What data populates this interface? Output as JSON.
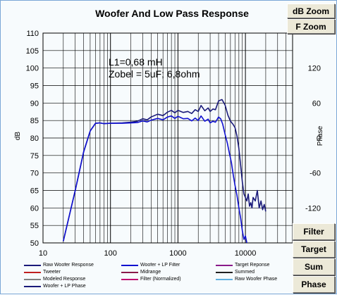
{
  "window": {
    "title": "Woofer  And Low Pass Response"
  },
  "buttons": {
    "db_zoom": "dB Zoom",
    "f_zoom": "F Zoom",
    "filter": "Filter",
    "target": "Target",
    "sum": "Sum",
    "phase": "Phase"
  },
  "annotations": {
    "line1": "L1=0,68 mH",
    "line2": "Zobel = 5uF; 6,8ohm"
  },
  "legend": [
    {
      "label": "Raw Woofer Response",
      "color": "#1a1a7a"
    },
    {
      "label": "Woofer + LP Filter",
      "color": "#1010d0"
    },
    {
      "label": "Target Reponse",
      "color": "#8a1a8a"
    },
    {
      "label": "Tweeter",
      "color": "#c02020"
    },
    {
      "label": "Midrange",
      "color": "#8a1a4a"
    },
    {
      "label": "Summed",
      "color": "#202020"
    },
    {
      "label": "Modeled Response",
      "color": "#808080"
    },
    {
      "label": "Filter (Normalized)",
      "color": "#c01070"
    },
    {
      "label": "Raw Woofer Phase",
      "color": "#60b0e0"
    },
    {
      "label": "Woofer + LP Phase",
      "color": "#1a1a7a"
    }
  ],
  "chart_data": {
    "type": "line",
    "title": "Woofer  And Low Pass Response",
    "xlabel": "",
    "ylabel": "dB",
    "y2label": "Phase",
    "x_scale": "log",
    "xlim": [
      10,
      50000
    ],
    "ylim": [
      50,
      110
    ],
    "y2lim": [
      -180,
      180
    ],
    "x_ticks": [
      "10",
      "100",
      "1000",
      "10000"
    ],
    "y_ticks": [
      "50",
      "55",
      "60",
      "65",
      "70",
      "75",
      "80",
      "85",
      "90",
      "95",
      "100",
      "105",
      "110"
    ],
    "y2_ticks": [
      "-120",
      "-60",
      "0",
      "60",
      "120"
    ],
    "grid": true,
    "series": [
      {
        "name": "Raw Woofer Response",
        "color": "#1a1a7a",
        "x": [
          20,
          30,
          40,
          50,
          60,
          70,
          80,
          100,
          150,
          200,
          250,
          300,
          350,
          400,
          500,
          600,
          700,
          800,
          900,
          1000,
          1200,
          1400,
          1600,
          1800,
          2000,
          2200,
          2500,
          2800,
          3000,
          3300,
          3600,
          4000,
          4500,
          5000,
          5500,
          6000,
          6500,
          7000,
          7500,
          8000,
          8500,
          9000,
          9500,
          10000,
          10500,
          11000,
          11500,
          12000,
          12500,
          13000,
          14000,
          15000,
          16000,
          17000,
          18000,
          19000,
          20000
        ],
        "y": [
          50.5,
          65,
          76,
          82,
          84.2,
          84.3,
          84.1,
          84.2,
          84.3,
          84.5,
          84.8,
          85.5,
          85.2,
          86.0,
          86.8,
          86.4,
          87.4,
          87.9,
          87.2,
          87.9,
          87.3,
          87.6,
          87.0,
          88.1,
          87.6,
          89.3,
          87.8,
          88.6,
          87.6,
          88.3,
          88.1,
          90.6,
          91.0,
          89.4,
          86.5,
          84.8,
          84.0,
          83.0,
          80.5,
          77.0,
          72.0,
          67.5,
          64.0,
          63.0,
          62.0,
          64.0,
          60.5,
          61.5,
          60.0,
          63.0,
          62.0,
          65.0,
          60.0,
          62.0,
          59.5,
          61.0,
          59.0
        ]
      },
      {
        "name": "Woofer + LP Filter",
        "color": "#1010d0",
        "x": [
          20,
          30,
          40,
          50,
          60,
          70,
          80,
          100,
          150,
          200,
          250,
          300,
          350,
          400,
          500,
          600,
          700,
          800,
          900,
          1000,
          1200,
          1400,
          1600,
          1800,
          2000,
          2200,
          2500,
          2800,
          3000,
          3300,
          3600,
          4000,
          4300,
          4600,
          5000,
          5400,
          5800,
          6200,
          6600,
          7000,
          7500,
          8000,
          8500,
          9000,
          9500,
          10000,
          10500
        ],
        "y": [
          50.5,
          65,
          76,
          82,
          84.2,
          84.3,
          84.1,
          84.2,
          84.2,
          84.3,
          84.4,
          84.9,
          84.6,
          85.1,
          85.6,
          85.2,
          86.0,
          86.3,
          85.6,
          86.2,
          85.5,
          85.6,
          84.9,
          85.7,
          85.0,
          86.3,
          84.8,
          85.4,
          84.3,
          84.8,
          84.5,
          86.0,
          85.5,
          84.0,
          81.0,
          78.5,
          75.5,
          73.0,
          69.5,
          66.5,
          63.5,
          60.0,
          57.0,
          53.5,
          51.0,
          52.0,
          50.0
        ]
      }
    ]
  }
}
